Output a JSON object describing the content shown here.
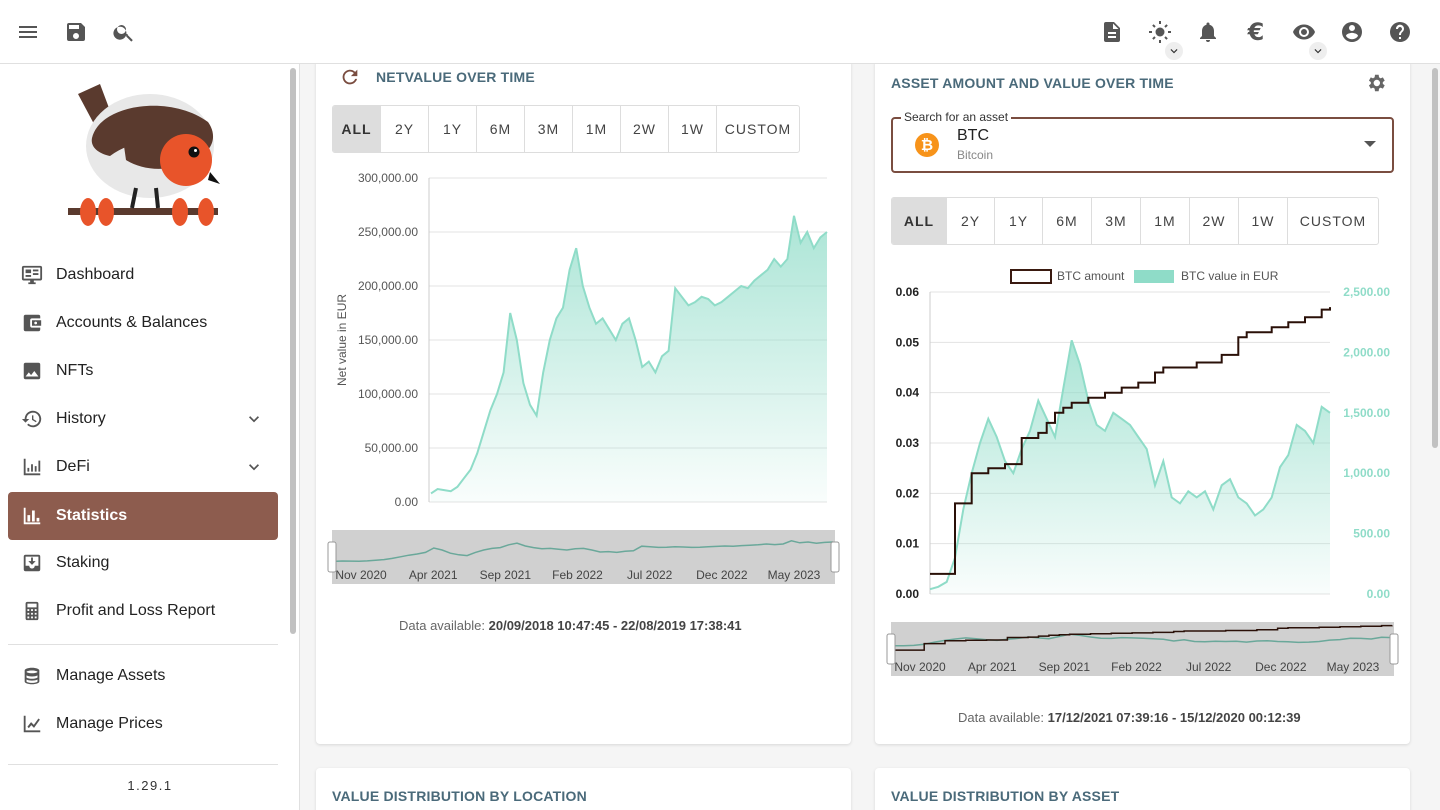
{
  "topbar": {
    "icons": [
      "menu-icon",
      "save-icon",
      "search-icon",
      "notes-icon",
      "theme-icon",
      "notifications-icon",
      "currency-euro-icon",
      "privacy-eye-icon",
      "account-icon",
      "help-icon"
    ],
    "currency_symbol": "€"
  },
  "sidebar": {
    "items": [
      {
        "label": "Dashboard",
        "icon": "dashboard-icon"
      },
      {
        "label": "Accounts & Balances",
        "icon": "wallet-icon"
      },
      {
        "label": "NFTs",
        "icon": "image-icon"
      },
      {
        "label": "History",
        "icon": "history-icon"
      },
      {
        "label": "DeFi",
        "icon": "defi-icon"
      },
      {
        "label": "Statistics",
        "icon": "statistics-icon"
      },
      {
        "label": "Staking",
        "icon": "staking-icon"
      },
      {
        "label": "Profit and Loss Report",
        "icon": "calculator-icon"
      },
      {
        "label": "Manage Assets",
        "icon": "database-icon"
      },
      {
        "label": "Manage Prices",
        "icon": "chart-line-icon"
      }
    ],
    "version": "1.29.1",
    "accent": "#8d5c4e"
  },
  "netvalue": {
    "title": "NETVALUE OVER TIME",
    "periods": [
      "ALL",
      "2Y",
      "1Y",
      "6M",
      "3M",
      "1M",
      "2W",
      "1W",
      "CUSTOM"
    ],
    "selected": "ALL",
    "data_available_label": "Data available:",
    "data_available_range": "20/09/2018 10:47:45 - 22/08/2019 17:38:41"
  },
  "asset_chart": {
    "title": "ASSET AMOUNT AND VALUE OVER TIME",
    "search_label": "Search for an asset",
    "asset_symbol": "BTC",
    "asset_name": "Bitcoin",
    "coin_glyph": "₿",
    "periods": [
      "ALL",
      "2Y",
      "1Y",
      "6M",
      "3M",
      "1M",
      "2W",
      "1W",
      "CUSTOM"
    ],
    "selected": "ALL",
    "data_available_label": "Data available:",
    "data_available_range": "17/12/2021 07:39:16 - 15/12/2020 00:12:39"
  },
  "bottom_cards": {
    "location_title": "VALUE DISTRIBUTION BY LOCATION",
    "asset_title": "VALUE DISTRIBUTION BY ASSET"
  },
  "chart_data": [
    {
      "type": "area",
      "ylabel": "Net value in EUR",
      "ylim": [
        0,
        300000
      ],
      "yticks": [
        "0.00",
        "50,000.00",
        "100,000.00",
        "150,000.00",
        "200,000.00",
        "250,000.00",
        "300,000.00"
      ],
      "navigator_ticks": [
        "Nov 2020",
        "Apr 2021",
        "Sep 2021",
        "Feb 2022",
        "Jul 2022",
        "Dec 2022",
        "May 2023"
      ],
      "color": "#8fdcc8",
      "grid": true,
      "values": [
        8000,
        12000,
        11000,
        10000,
        14000,
        22000,
        30000,
        45000,
        65000,
        85000,
        100000,
        120000,
        175000,
        150000,
        110000,
        90000,
        80000,
        120000,
        150000,
        170000,
        180000,
        215000,
        235000,
        200000,
        180000,
        165000,
        170000,
        160000,
        150000,
        165000,
        170000,
        150000,
        125000,
        130000,
        120000,
        135000,
        140000,
        198000,
        190000,
        182000,
        185000,
        190000,
        188000,
        182000,
        185000,
        190000,
        195000,
        200000,
        198000,
        205000,
        210000,
        215000,
        225000,
        218000,
        225000,
        265000,
        240000,
        250000,
        235000,
        245000,
        250000
      ]
    },
    {
      "type": "line",
      "legend": [
        {
          "name": "BTC amount",
          "color": "#3a1a10"
        },
        {
          "name": "BTC value in EUR",
          "color": "#8fdcc8"
        }
      ],
      "legend_placement": "top-center",
      "y_left_lim": [
        0,
        0.06
      ],
      "y_left_ticks": [
        "0.00",
        "0.01",
        "0.02",
        "0.03",
        "0.04",
        "0.05",
        "0.06"
      ],
      "y_right_lim": [
        0,
        2500
      ],
      "y_right_ticks": [
        "0.00",
        "500.00",
        "1,000.00",
        "1,500.00",
        "2,000.00",
        "2,500.00"
      ],
      "navigator_ticks": [
        "Nov 2020",
        "Apr 2021",
        "Sep 2021",
        "Feb 2022",
        "Jul 2022",
        "Dec 2022",
        "May 2023"
      ],
      "grid": true,
      "series": [
        {
          "name": "BTC amount",
          "values": [
            0.004,
            0.004,
            0.004,
            0.018,
            0.018,
            0.024,
            0.024,
            0.025,
            0.025,
            0.0258,
            0.0258,
            0.031,
            0.031,
            0.032,
            0.034,
            0.036,
            0.037,
            0.038,
            0.038,
            0.039,
            0.039,
            0.04,
            0.04,
            0.041,
            0.041,
            0.042,
            0.042,
            0.044,
            0.045,
            0.045,
            0.045,
            0.045,
            0.046,
            0.046,
            0.046,
            0.0475,
            0.0475,
            0.051,
            0.052,
            0.052,
            0.052,
            0.053,
            0.053,
            0.054,
            0.054,
            0.055,
            0.055,
            0.0565,
            0.057
          ]
        },
        {
          "name": "BTC value in EUR",
          "values": [
            40,
            60,
            100,
            300,
            700,
            1000,
            1250,
            1450,
            1300,
            1100,
            1000,
            1200,
            1350,
            1600,
            1450,
            1300,
            1700,
            2100,
            1900,
            1600,
            1400,
            1350,
            1500,
            1450,
            1400,
            1300,
            1200,
            900,
            1100,
            800,
            750,
            850,
            800,
            850,
            700,
            900,
            950,
            800,
            750,
            650,
            700,
            800,
            1050,
            1150,
            1400,
            1350,
            1250,
            1550,
            1500
          ]
        }
      ]
    }
  ]
}
